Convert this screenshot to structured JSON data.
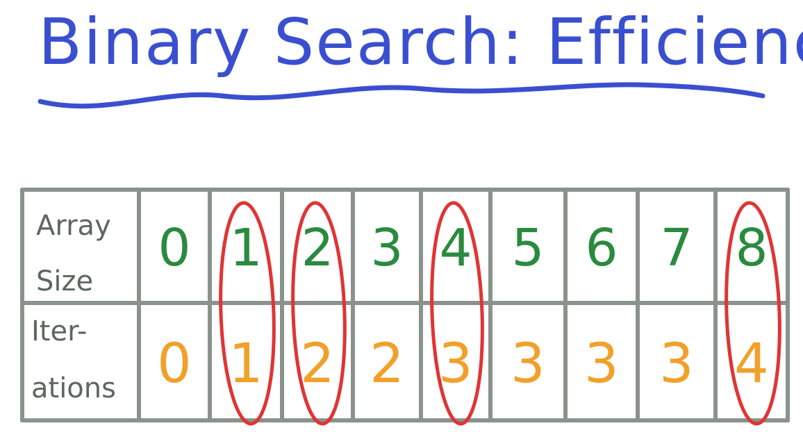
{
  "title": "Binary Search: Efficiency",
  "table": {
    "row_labels": {
      "array_size": [
        "Array",
        "Size"
      ],
      "iterations": [
        "Iter-",
        "ations"
      ]
    },
    "array_size": [
      "0",
      "1",
      "2",
      "3",
      "4",
      "5",
      "6",
      "7",
      "8"
    ],
    "iterations": [
      "0",
      "1",
      "2",
      "2",
      "3",
      "3",
      "3",
      "3",
      "4"
    ],
    "circled_columns": [
      1,
      2,
      4,
      8
    ]
  },
  "colors": {
    "title": "#3a4fd0",
    "grid": "#8a928c",
    "array_size": "#2a8a3e",
    "iterations": "#f1a02a",
    "highlight": "#e03434",
    "label": "#5d6660"
  }
}
